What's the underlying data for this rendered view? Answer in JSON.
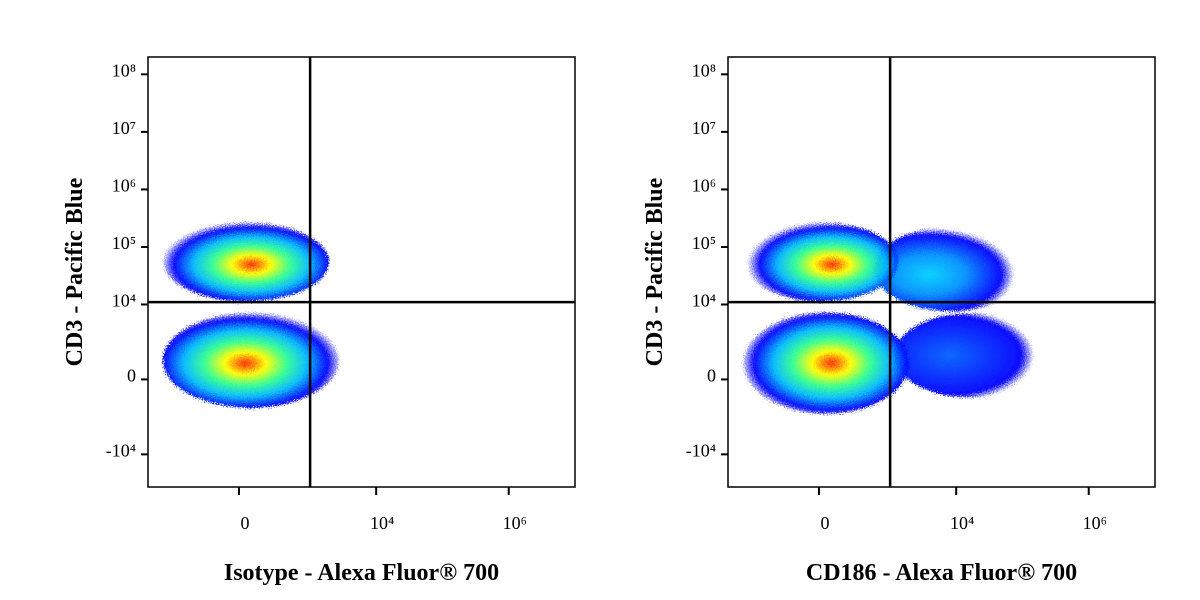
{
  "chart_data": [
    {
      "type": "density",
      "x_label": "Isotype - Alexa Fluor® 700",
      "y_label": "CD3 - Pacific Blue",
      "xscale": {
        "type": "asinh",
        "width": 170
      },
      "yscale": {
        "type": "asinh",
        "width": 1000
      },
      "xlim": [
        -2000,
        10000000
      ],
      "ylim": [
        -37000,
        200000000
      ],
      "xticks": [
        0,
        {
          "value": 10000,
          "label": "10⁴"
        },
        {
          "value": 1000000,
          "label": "10⁶"
        }
      ],
      "yticks": [
        {
          "value": -10000,
          "label": "-10⁴"
        },
        0,
        {
          "value": 10000,
          "label": "10⁴"
        },
        {
          "value": 100000,
          "label": "10⁵"
        },
        {
          "value": 1000000,
          "label": "10⁶"
        },
        {
          "value": 10000000,
          "label": "10⁷"
        },
        {
          "value": 100000000,
          "label": "10⁸"
        }
      ],
      "gate": {
        "x": 1000,
        "y": 11000
      },
      "populations": [
        {
          "x": 73,
          "y": 50000,
          "xrange": [
            -900,
            1480
          ],
          "yrange": [
            13100,
            234000
          ],
          "colors": [
            "#0000ff",
            "#00b8ff",
            "#30ff90",
            "#ffff00",
            "#ff2000"
          ]
        },
        {
          "x": 42,
          "y": 700,
          "xrange": [
            -900,
            2080
          ],
          "yrange": [
            -1120,
            6050
          ],
          "colors": [
            "#0000ff",
            "#00b8ff",
            "#30ff90",
            "#ffff00",
            "#ff2000"
          ]
        }
      ]
    },
    {
      "type": "density",
      "x_label": "CD186 - Alexa Fluor® 700",
      "y_label": "CD3 - Pacific Blue",
      "xscale": {
        "type": "asinh",
        "width": 170
      },
      "yscale": {
        "type": "asinh",
        "width": 1000
      },
      "xlim": [
        -2000,
        10000000
      ],
      "ylim": [
        -37000,
        200000000
      ],
      "xticks": [
        0,
        {
          "value": 10000,
          "label": "10⁴"
        },
        {
          "value": 1000000,
          "label": "10⁶"
        }
      ],
      "yticks": [
        {
          "value": -10000,
          "label": "-10⁴"
        },
        0,
        {
          "value": 10000,
          "label": "10⁴"
        },
        {
          "value": 100000,
          "label": "10⁵"
        },
        {
          "value": 1000000,
          "label": "10⁶"
        },
        {
          "value": 10000000,
          "label": "10⁷"
        },
        {
          "value": 100000000,
          "label": "10⁸"
        }
      ],
      "gate": {
        "x": 1000,
        "y": 11000
      },
      "populations": [
        {
          "x": 4200,
          "y": 34000,
          "xrange": [
            730,
            97000
          ],
          "yrange": [
            8900,
            194000
          ],
          "colors": [
            "#0000ff",
            "#0090ff",
            "#00d0ff"
          ]
        },
        {
          "x": 8450,
          "y": 1120,
          "xrange": [
            1480,
            194000
          ],
          "yrange": [
            -610,
            6050
          ],
          "colors": [
            "#0000ff",
            "#0060ff"
          ]
        },
        {
          "x": 73,
          "y": 50000,
          "xrange": [
            -900,
            1040
          ],
          "yrange": [
            13100,
            234000
          ],
          "colors": [
            "#0000ff",
            "#00b8ff",
            "#30ff90",
            "#ffff00",
            "#ff2000"
          ]
        },
        {
          "x": 73,
          "y": 700,
          "xrange": [
            -900,
            1480
          ],
          "yrange": [
            -1500,
            6050
          ],
          "colors": [
            "#0000ff",
            "#00b8ff",
            "#30ff90",
            "#ffff00",
            "#ff2000"
          ]
        }
      ]
    }
  ]
}
